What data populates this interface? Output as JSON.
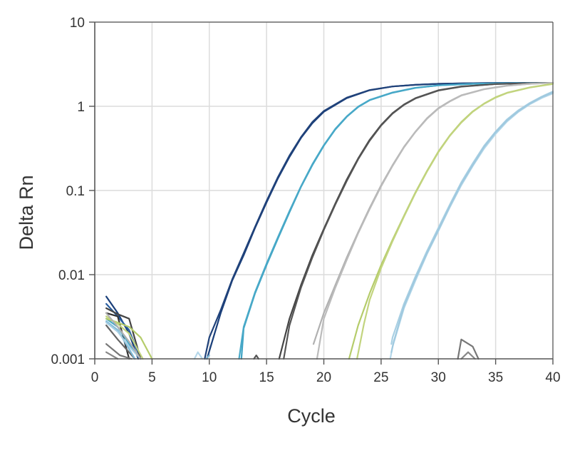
{
  "chart_data": {
    "type": "line",
    "title": "",
    "xlabel": "Cycle",
    "ylabel": "Delta Rn",
    "xlim": [
      0,
      40
    ],
    "ylim": [
      0.001,
      10
    ],
    "y_scale": "log",
    "grid": true,
    "legend": "none",
    "x_ticks": [
      0,
      5,
      10,
      15,
      20,
      25,
      30,
      35,
      40
    ],
    "y_ticks": [
      0.001,
      0.01,
      0.1,
      1,
      10
    ],
    "y_tick_labels": [
      "0.001",
      "0.01",
      "0.1",
      "1",
      "10"
    ],
    "x_tick_labels": [
      "0",
      "5",
      "10",
      "15",
      "20",
      "25",
      "30",
      "35",
      "40"
    ],
    "series": [
      {
        "color": "#1a3f7a",
        "x": [
          9.8,
          11,
          12,
          13,
          14,
          15,
          16,
          17,
          18,
          19,
          20,
          22,
          24,
          26,
          28,
          30,
          33,
          36,
          40
        ],
        "y": [
          0.001,
          0.0035,
          0.0085,
          0.017,
          0.036,
          0.072,
          0.14,
          0.25,
          0.42,
          0.63,
          0.86,
          1.25,
          1.55,
          1.72,
          1.8,
          1.85,
          1.88,
          1.9,
          1.9
        ]
      },
      {
        "color": "#20427a",
        "x": [
          9.6,
          10,
          11,
          12,
          13,
          14,
          15,
          16,
          17,
          18,
          19,
          20,
          22,
          24,
          26,
          28,
          30,
          33,
          36,
          40
        ],
        "y": [
          0.001,
          0.0018,
          0.0038,
          0.0088,
          0.018,
          0.037,
          0.075,
          0.145,
          0.26,
          0.43,
          0.65,
          0.88,
          1.27,
          1.56,
          1.72,
          1.8,
          1.85,
          1.88,
          1.9,
          1.9
        ]
      },
      {
        "color": "#3fa3c4",
        "x": [
          12.8,
          13,
          14,
          15,
          16,
          17,
          18,
          19,
          20,
          21,
          22,
          23,
          24,
          26,
          28,
          30,
          33,
          36,
          40
        ],
        "y": [
          0.001,
          0.0023,
          0.006,
          0.013,
          0.027,
          0.055,
          0.11,
          0.2,
          0.34,
          0.53,
          0.75,
          0.98,
          1.18,
          1.45,
          1.65,
          1.77,
          1.85,
          1.88,
          1.9
        ]
      },
      {
        "color": "#48a9c8",
        "x": [
          12.6,
          13,
          14,
          15,
          16,
          17,
          18,
          19,
          20,
          21,
          22,
          23,
          24,
          26,
          28,
          30,
          33,
          36,
          40
        ],
        "y": [
          0.001,
          0.0024,
          0.0062,
          0.0135,
          0.028,
          0.057,
          0.112,
          0.205,
          0.345,
          0.54,
          0.76,
          0.99,
          1.19,
          1.46,
          1.66,
          1.77,
          1.85,
          1.88,
          1.9
        ]
      },
      {
        "color": "#444444",
        "x": [
          16.1,
          17,
          18,
          19,
          20,
          21,
          22,
          23,
          24,
          25,
          26,
          27,
          28,
          30,
          32,
          35,
          38,
          40
        ],
        "y": [
          0.001,
          0.003,
          0.0075,
          0.017,
          0.035,
          0.07,
          0.135,
          0.24,
          0.4,
          0.6,
          0.83,
          1.05,
          1.25,
          1.55,
          1.72,
          1.84,
          1.88,
          1.9
        ]
      },
      {
        "color": "#555555",
        "x": [
          16.5,
          17,
          18,
          19,
          20,
          21,
          22,
          23,
          24,
          25,
          26,
          27,
          28,
          30,
          32,
          35,
          38,
          40
        ],
        "y": [
          0.001,
          0.0025,
          0.007,
          0.016,
          0.034,
          0.068,
          0.13,
          0.235,
          0.39,
          0.59,
          0.82,
          1.04,
          1.24,
          1.54,
          1.71,
          1.84,
          1.88,
          1.9
        ]
      },
      {
        "color": "#b0b0b0",
        "x": [
          19.1,
          20,
          21,
          22,
          23,
          24,
          25,
          26,
          27,
          28,
          29,
          30,
          31,
          32,
          34,
          36,
          38,
          40
        ],
        "y": [
          0.0015,
          0.0035,
          0.0075,
          0.016,
          0.032,
          0.062,
          0.115,
          0.2,
          0.33,
          0.5,
          0.72,
          0.95,
          1.15,
          1.35,
          1.6,
          1.76,
          1.85,
          1.9
        ]
      },
      {
        "color": "#bbbbbb",
        "x": [
          19.4,
          20,
          21,
          22,
          23,
          24,
          25,
          26,
          27,
          28,
          29,
          30,
          31,
          32,
          34,
          36,
          38,
          40
        ],
        "y": [
          0.001,
          0.003,
          0.007,
          0.015,
          0.031,
          0.06,
          0.112,
          0.196,
          0.325,
          0.495,
          0.71,
          0.94,
          1.14,
          1.34,
          1.59,
          1.75,
          1.85,
          1.9
        ]
      },
      {
        "color": "#b5cc6a",
        "x": [
          22.2,
          23,
          24,
          25,
          26,
          27,
          28,
          29,
          30,
          31,
          32,
          33,
          34,
          35,
          36,
          38,
          40
        ],
        "y": [
          0.001,
          0.0025,
          0.006,
          0.013,
          0.026,
          0.05,
          0.095,
          0.17,
          0.29,
          0.45,
          0.65,
          0.87,
          1.08,
          1.28,
          1.45,
          1.68,
          1.85
        ]
      },
      {
        "color": "#c2d47e",
        "x": [
          22.9,
          23.5,
          24,
          25,
          26,
          27,
          28,
          29,
          30,
          31,
          32,
          33,
          34,
          35,
          36,
          38,
          40
        ],
        "y": [
          0.001,
          0.0026,
          0.005,
          0.012,
          0.025,
          0.049,
          0.093,
          0.167,
          0.285,
          0.445,
          0.64,
          0.86,
          1.07,
          1.27,
          1.44,
          1.67,
          1.84
        ]
      },
      {
        "color": "#a8cfe3",
        "x": [
          25.9,
          26,
          27,
          28,
          29,
          30,
          31,
          32,
          33,
          34,
          35,
          36,
          37,
          38,
          39,
          40
        ],
        "y": [
          0.0015,
          0.0018,
          0.0045,
          0.0095,
          0.019,
          0.036,
          0.068,
          0.125,
          0.21,
          0.34,
          0.5,
          0.7,
          0.9,
          1.1,
          1.3,
          1.5
        ]
      },
      {
        "color": "#b6d8ea",
        "x": [
          25.8,
          26,
          27,
          28,
          29,
          30,
          31,
          32,
          33,
          34,
          35,
          36,
          37,
          38,
          39,
          40
        ],
        "y": [
          0.001,
          0.0014,
          0.004,
          0.0085,
          0.0175,
          0.033,
          0.063,
          0.115,
          0.195,
          0.315,
          0.47,
          0.66,
          0.86,
          1.06,
          1.25,
          1.42
        ]
      },
      {
        "color": "#9fc9df",
        "x": [
          25.9,
          26.1,
          27,
          28,
          29,
          30,
          31,
          32,
          33,
          34,
          35,
          36,
          37,
          38,
          39,
          40
        ],
        "y": [
          0.0012,
          0.0016,
          0.0042,
          0.009,
          0.018,
          0.034,
          0.065,
          0.12,
          0.2,
          0.33,
          0.49,
          0.68,
          0.88,
          1.08,
          1.28,
          1.46
        ]
      },
      {
        "color": "#1a3f7a",
        "x": [
          1,
          2,
          3,
          3.8
        ],
        "y": [
          0.0055,
          0.0035,
          0.002,
          0.001
        ]
      },
      {
        "color": "#2a5fa0",
        "x": [
          1,
          2,
          3,
          4
        ],
        "y": [
          0.0045,
          0.0032,
          0.0022,
          0.001
        ]
      },
      {
        "color": "#444444",
        "x": [
          1,
          2,
          3,
          4
        ],
        "y": [
          0.004,
          0.0034,
          0.003,
          0.001
        ]
      },
      {
        "color": "#333333",
        "x": [
          1,
          2,
          3
        ],
        "y": [
          0.0035,
          0.0032,
          0.001
        ]
      },
      {
        "color": "#666666",
        "x": [
          1,
          2,
          3.5
        ],
        "y": [
          0.0025,
          0.0017,
          0.001
        ]
      },
      {
        "color": "#777777",
        "x": [
          1,
          2.2,
          3.2
        ],
        "y": [
          0.0015,
          0.0011,
          0.001
        ]
      },
      {
        "color": "#888888",
        "x": [
          1,
          2
        ],
        "y": [
          0.0012,
          0.001
        ]
      },
      {
        "color": "#48a9c8",
        "x": [
          1,
          2,
          3,
          4
        ],
        "y": [
          0.003,
          0.0024,
          0.0015,
          0.001
        ]
      },
      {
        "color": "#7fb9d6",
        "x": [
          1,
          2,
          3.5
        ],
        "y": [
          0.0028,
          0.0022,
          0.001
        ]
      },
      {
        "color": "#a8cfe3",
        "x": [
          1,
          2,
          3,
          4
        ],
        "y": [
          0.0027,
          0.0021,
          0.0014,
          0.001
        ]
      },
      {
        "color": "#b5cc6a",
        "x": [
          1,
          2,
          3,
          4,
          5
        ],
        "y": [
          0.003,
          0.0027,
          0.0024,
          0.0018,
          0.001
        ]
      },
      {
        "color": "#c2d47e",
        "x": [
          1,
          2,
          3,
          4.2
        ],
        "y": [
          0.0032,
          0.0026,
          0.002,
          0.001
        ]
      },
      {
        "color": "#b0b0b0",
        "x": [
          1,
          2,
          3,
          4
        ],
        "y": [
          0.0035,
          0.0024,
          0.0016,
          0.001
        ]
      },
      {
        "color": "#b6d8ea",
        "x": [
          8.7,
          9,
          9.4
        ],
        "y": [
          0.001,
          0.0012,
          0.001
        ]
      },
      {
        "color": "#7fb9d6",
        "x": [
          9.7,
          10
        ],
        "y": [
          0.001,
          0.0011
        ]
      },
      {
        "color": "#555555",
        "x": [
          13.9,
          14.1,
          14.3
        ],
        "y": [
          0.001,
          0.0011,
          0.001
        ]
      },
      {
        "color": "#777777",
        "x": [
          31.7,
          32,
          33,
          33.5
        ],
        "y": [
          0.001,
          0.0017,
          0.0014,
          0.001
        ]
      },
      {
        "color": "#888888",
        "x": [
          32,
          32.6,
          33.2
        ],
        "y": [
          0.001,
          0.0012,
          0.001
        ]
      }
    ]
  }
}
